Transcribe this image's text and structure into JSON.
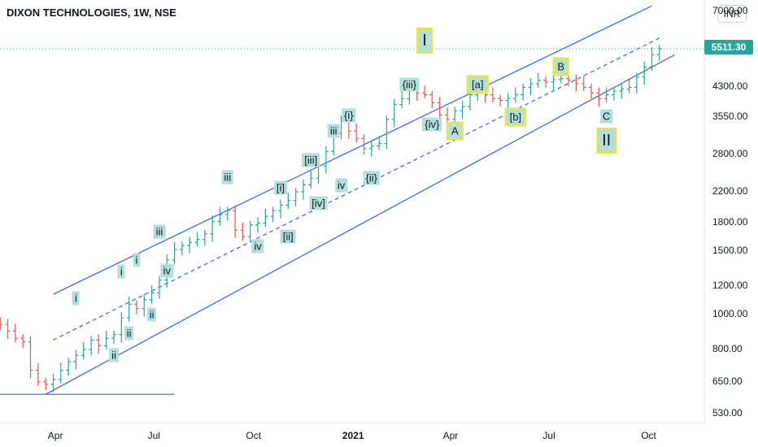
{
  "header": {
    "title": "DIXON TECHNOLOGIES, 1W, NSE",
    "currency": "INR"
  },
  "price_tag": "5511.30",
  "colors": {
    "up": "#26a69a",
    "down": "#ef5350",
    "channel": "#2962ff",
    "wave_fill": "#b2dfdb",
    "wave_border": "#e1e55a"
  },
  "chart_data": {
    "type": "ohlc",
    "title": "DIXON TECHNOLOGIES, 1W, NSE",
    "ylabel": "",
    "xlabel": "",
    "y_scale": "log",
    "ylim": [
      470,
      7000
    ],
    "y_ticks": [
      "7000.00",
      "4300.00",
      "3550.00",
      "2800.00",
      "2200.00",
      "1800.00",
      "1500.00",
      "1200.00",
      "1000.00",
      "800.00",
      "650.00",
      "530.00"
    ],
    "x_ticks": [
      "Apr",
      "Jul",
      "Oct",
      "2021",
      "Apr",
      "Jul",
      "Oct"
    ],
    "x_tick_dates": [
      "2020-04-01",
      "2020-07-01",
      "2020-10-01",
      "2021-01-01",
      "2021-04-01",
      "2021-07-01",
      "2021-10-01"
    ],
    "last_price": 5511.3,
    "weekly_closes": [
      [
        "2020-02-10",
        940
      ],
      [
        "2020-02-17",
        900
      ],
      [
        "2020-02-24",
        860
      ],
      [
        "2020-03-02",
        840
      ],
      [
        "2020-03-09",
        700
      ],
      [
        "2020-03-16",
        650
      ],
      [
        "2020-03-23",
        640
      ],
      [
        "2020-03-30",
        660
      ],
      [
        "2020-04-06",
        700
      ],
      [
        "2020-04-13",
        740
      ],
      [
        "2020-04-20",
        770
      ],
      [
        "2020-04-27",
        800
      ],
      [
        "2020-05-04",
        850
      ],
      [
        "2020-05-11",
        820
      ],
      [
        "2020-05-18",
        860
      ],
      [
        "2020-05-25",
        880
      ],
      [
        "2020-06-01",
        980
      ],
      [
        "2020-06-08",
        1070
      ],
      [
        "2020-06-15",
        1040
      ],
      [
        "2020-06-22",
        1100
      ],
      [
        "2020-06-29",
        1150
      ],
      [
        "2020-07-06",
        1250
      ],
      [
        "2020-07-13",
        1420
      ],
      [
        "2020-07-20",
        1520
      ],
      [
        "2020-07-27",
        1560
      ],
      [
        "2020-08-03",
        1590
      ],
      [
        "2020-08-10",
        1620
      ],
      [
        "2020-08-17",
        1680
      ],
      [
        "2020-08-24",
        1820
      ],
      [
        "2020-08-31",
        1900
      ],
      [
        "2020-09-07",
        1950
      ],
      [
        "2020-09-14",
        1720
      ],
      [
        "2020-09-21",
        1650
      ],
      [
        "2020-09-28",
        1780
      ],
      [
        "2020-10-05",
        1800
      ],
      [
        "2020-10-12",
        1880
      ],
      [
        "2020-10-19",
        1950
      ],
      [
        "2020-10-26",
        2020
      ],
      [
        "2020-11-02",
        2080
      ],
      [
        "2020-11-09",
        2200
      ],
      [
        "2020-11-16",
        2300
      ],
      [
        "2020-11-23",
        2400
      ],
      [
        "2020-11-30",
        2600
      ],
      [
        "2020-12-07",
        2850
      ],
      [
        "2020-12-14",
        3200
      ],
      [
        "2020-12-21",
        3500
      ],
      [
        "2020-12-28",
        3250
      ],
      [
        "2021-01-04",
        3100
      ],
      [
        "2021-01-11",
        2900
      ],
      [
        "2021-01-18",
        2950
      ],
      [
        "2021-01-25",
        3000
      ],
      [
        "2021-02-01",
        3500
      ],
      [
        "2021-02-08",
        3850
      ],
      [
        "2021-02-15",
        4000
      ],
      [
        "2021-02-22",
        4200
      ],
      [
        "2021-03-01",
        4150
      ],
      [
        "2021-03-08",
        4100
      ],
      [
        "2021-03-15",
        3900
      ],
      [
        "2021-03-22",
        3600
      ],
      [
        "2021-03-29",
        3500
      ],
      [
        "2021-04-05",
        3700
      ],
      [
        "2021-04-12",
        3800
      ],
      [
        "2021-04-19",
        4100
      ],
      [
        "2021-04-26",
        4200
      ],
      [
        "2021-05-03",
        4100
      ],
      [
        "2021-05-10",
        4000
      ],
      [
        "2021-05-17",
        3950
      ],
      [
        "2021-05-24",
        4000
      ],
      [
        "2021-05-31",
        4100
      ],
      [
        "2021-06-07",
        4300
      ],
      [
        "2021-06-14",
        4400
      ],
      [
        "2021-06-21",
        4500
      ],
      [
        "2021-06-28",
        4450
      ],
      [
        "2021-07-05",
        4520
      ],
      [
        "2021-07-12",
        4550
      ],
      [
        "2021-07-19",
        4500
      ],
      [
        "2021-07-26",
        4400
      ],
      [
        "2021-08-02",
        4300
      ],
      [
        "2021-08-09",
        4150
      ],
      [
        "2021-08-16",
        4000
      ],
      [
        "2021-08-23",
        4100
      ],
      [
        "2021-08-30",
        4200
      ],
      [
        "2021-09-06",
        4250
      ],
      [
        "2021-09-13",
        4300
      ],
      [
        "2021-09-20",
        4600
      ],
      [
        "2021-09-27",
        4900
      ],
      [
        "2021-10-04",
        5300
      ],
      [
        "2021-10-11",
        5511.3
      ]
    ],
    "channel_lines": {
      "upper": [
        [
          "2020-03-30",
          1140
        ],
        [
          "2021-10-04",
          7250
        ]
      ],
      "middle_dashed": [
        [
          "2020-03-30",
          850
        ],
        [
          "2021-10-11",
          5900
        ]
      ],
      "lower": [
        [
          "2020-03-23",
          600
        ],
        [
          "2021-10-25",
          5300
        ]
      ],
      "base": [
        [
          "2020-01-27",
          600
        ],
        [
          "2020-07-20",
          600
        ]
      ]
    },
    "wave_labels": [
      {
        "text": "i",
        "date": "2020-04-20",
        "price": 1110
      },
      {
        "text": "ii",
        "date": "2020-05-25",
        "price": 770
      },
      {
        "text": "i",
        "date": "2020-06-01",
        "price": 1320
      },
      {
        "text": "ii",
        "date": "2020-06-08",
        "price": 890
      },
      {
        "text": "i",
        "date": "2020-06-15",
        "price": 1420
      },
      {
        "text": "ii",
        "date": "2020-06-29",
        "price": 1000
      },
      {
        "text": "iii",
        "date": "2020-07-06",
        "price": 1700
      },
      {
        "text": "iv",
        "date": "2020-07-13",
        "price": 1330
      },
      {
        "text": "iii",
        "date": "2020-09-07",
        "price": 2410
      },
      {
        "text": "iv",
        "date": "2020-10-05",
        "price": 1555
      },
      {
        "text": "[i]",
        "date": "2020-10-26",
        "price": 2260
      },
      {
        "text": "[ii]",
        "date": "2020-11-02",
        "price": 1650
      },
      {
        "text": "[iii]",
        "date": "2020-11-23",
        "price": 2700
      },
      {
        "text": "[iv]",
        "date": "2020-11-30",
        "price": 2050
      },
      {
        "text": "iii",
        "date": "2020-12-14",
        "price": 3250
      },
      {
        "text": "iv",
        "date": "2020-12-21",
        "price": 2290
      },
      {
        "text": "{i}",
        "date": "2020-12-28",
        "price": 3600
      },
      {
        "text": "{ii}",
        "date": "2021-01-18",
        "price": 2400
      },
      {
        "text": "{iii}",
        "date": "2021-02-22",
        "price": 4380
      },
      {
        "text": "{iv}",
        "date": "2021-03-15",
        "price": 3390
      },
      {
        "text": "I",
        "date": "2021-03-08",
        "price": 5800,
        "boxed": true,
        "big": true
      },
      {
        "text": "[a]",
        "date": "2021-04-26",
        "price": 4380,
        "boxed": true
      },
      {
        "text": "A",
        "date": "2021-04-05",
        "price": 3250,
        "boxed": true
      },
      {
        "text": "[b]",
        "date": "2021-05-31",
        "price": 3550,
        "boxed": true
      },
      {
        "text": "B",
        "date": "2021-07-12",
        "price": 4900,
        "boxed": true
      },
      {
        "text": "C",
        "date": "2021-08-23",
        "price": 3580
      },
      {
        "text": "II",
        "date": "2021-08-23",
        "price": 3050,
        "boxed": true,
        "big": true
      }
    ]
  }
}
